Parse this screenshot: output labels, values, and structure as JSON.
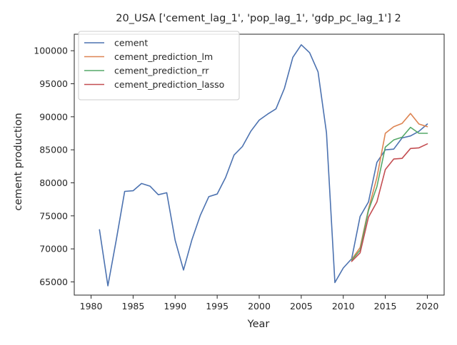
{
  "chart_data": {
    "type": "line",
    "title": "20_USA ['cement_lag_1', 'pop_lag_1', 'gdp_pc_lag_1'] 2",
    "xlabel": "Year",
    "ylabel": "cement production",
    "xlim": [
      1978,
      2022
    ],
    "ylim": [
      63000,
      102500
    ],
    "xticks": [
      1980,
      1985,
      1990,
      1995,
      2000,
      2005,
      2010,
      2015,
      2020
    ],
    "yticks": [
      65000,
      70000,
      75000,
      80000,
      85000,
      90000,
      95000,
      100000
    ],
    "grid": false,
    "legend_position": "top-left",
    "series": [
      {
        "name": "cement",
        "color": "#4c72b0",
        "x": [
          1981,
          1982,
          1983,
          1984,
          1985,
          1986,
          1987,
          1988,
          1989,
          1990,
          1991,
          1992,
          1993,
          1994,
          1995,
          1996,
          1997,
          1998,
          1999,
          2000,
          2001,
          2002,
          2003,
          2004,
          2005,
          2006,
          2007,
          2008,
          2009,
          2010,
          2011,
          2012,
          2013,
          2014,
          2015,
          2016,
          2017,
          2018,
          2019,
          2020
        ],
        "y": [
          72900,
          64400,
          71400,
          78700,
          78800,
          79900,
          79500,
          78200,
          78500,
          71300,
          66800,
          71400,
          75100,
          77900,
          78300,
          80800,
          84200,
          85500,
          87800,
          89500,
          90400,
          91200,
          94300,
          99000,
          100900,
          99700,
          96800,
          87600,
          64900,
          67100,
          68500,
          74900,
          77100,
          83100,
          85000,
          85100,
          86800,
          87100,
          87800,
          88900
        ]
      },
      {
        "name": "cement_prediction_lm",
        "color": "#dd8452",
        "x": [
          2011,
          2012,
          2013,
          2014,
          2015,
          2016,
          2017,
          2018,
          2019,
          2020
        ],
        "y": [
          68400,
          70200,
          76000,
          80800,
          87500,
          88500,
          89000,
          90500,
          88900,
          88500
        ]
      },
      {
        "name": "cement_prediction_rr",
        "color": "#55a868",
        "x": [
          2011,
          2012,
          2013,
          2014,
          2015,
          2016,
          2017,
          2018,
          2019,
          2020
        ],
        "y": [
          68300,
          69800,
          75800,
          79400,
          85400,
          86500,
          86900,
          88400,
          87500,
          87500
        ]
      },
      {
        "name": "cement_prediction_lasso",
        "color": "#c44e52",
        "x": [
          2011,
          2012,
          2013,
          2014,
          2015,
          2016,
          2017,
          2018,
          2019,
          2020
        ],
        "y": [
          68100,
          69400,
          74800,
          77100,
          82000,
          83600,
          83700,
          85200,
          85300,
          85900
        ]
      }
    ]
  }
}
